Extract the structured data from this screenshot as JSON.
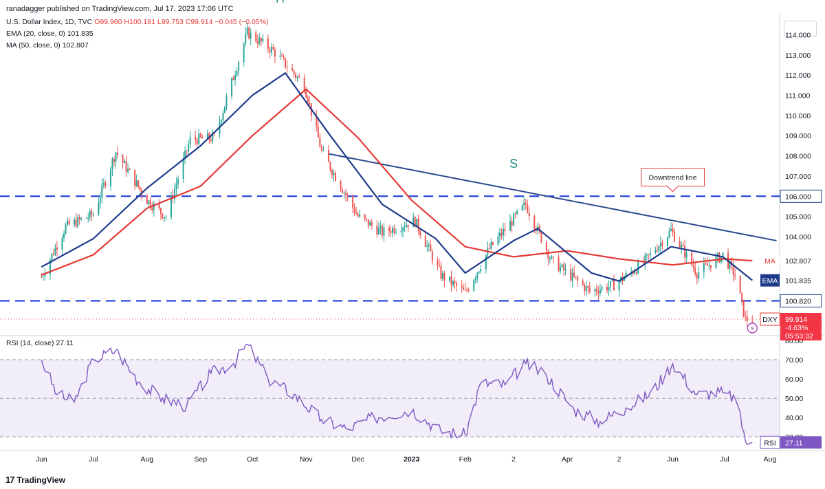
{
  "publisher": "ranadagger published on TradingView.com, Jul 17, 2023 17:06 UTC",
  "legend": {
    "symbol": "U.S. Dollar Index, 1D, TVC",
    "ohlc": "O99.960 H100.181 L99.753 C99.914 −0.045 (−0.05%)",
    "ema": "EMA (20, close, 0)",
    "ema_value": "101.835",
    "ma": "MA (50, close, 0)",
    "ma_value": "102.807"
  },
  "rsi_legend": "RSI (14, close)",
  "rsi_legend_value": "27.11",
  "watermark": "TradingView",
  "colors": {
    "up": "#26a69a",
    "down": "#ef5350",
    "ema": "#1e3a8a",
    "ma": "#e53935",
    "rsi": "#7e57c2",
    "level_line": "#1e3ad8",
    "trendline": "#2a4b8d",
    "pattern_label": "#1e8f84"
  },
  "chart_data": [
    {
      "type": "candlestick",
      "title": "U.S. Dollar Index, 1D, TVC",
      "x_ticks": [
        "Jun",
        "Jul",
        "Aug",
        "Sep",
        "Oct",
        "Nov",
        "Dec",
        "2023",
        "Feb",
        "2",
        "Apr",
        "2",
        "Jun",
        "Jul",
        "Aug"
      ],
      "y_ticks": [
        "114.000",
        "113.000",
        "112.000",
        "111.000",
        "110.000",
        "109.000",
        "108.000",
        "107.000",
        "106.000",
        "105.000",
        "104.000",
        "103.000",
        "102.000",
        "101.000"
      ],
      "ylim": [
        99.2,
        114.9
      ],
      "series": [
        {
          "name": "DXY",
          "x": [
            "2022-06-01",
            "2022-06-15",
            "2022-07-01",
            "2022-07-14",
            "2022-08-01",
            "2022-08-12",
            "2022-08-26",
            "2022-09-09",
            "2022-09-28",
            "2022-10-13",
            "2022-10-31",
            "2022-11-10",
            "2022-12-01",
            "2022-12-15",
            "2023-01-03",
            "2023-01-18",
            "2023-02-01",
            "2023-02-15",
            "2023-03-08",
            "2023-03-23",
            "2023-04-14",
            "2023-04-28",
            "2023-05-15",
            "2023-05-31",
            "2023-06-15",
            "2023-06-30",
            "2023-07-07",
            "2023-07-13",
            "2023-07-17"
          ],
          "close": [
            102.0,
            104.5,
            105.1,
            108.2,
            105.8,
            105.0,
            108.8,
            108.9,
            114.1,
            113.2,
            111.5,
            108.2,
            105.0,
            104.2,
            104.8,
            102.1,
            101.2,
            103.4,
            105.6,
            102.8,
            101.3,
            101.6,
            102.7,
            104.3,
            102.2,
            103.1,
            102.1,
            99.9,
            99.914
          ]
        },
        {
          "name": "EMA (20, close, 0)",
          "x": [
            "2022-06-01",
            "2022-07-01",
            "2022-08-01",
            "2022-09-01",
            "2022-10-01",
            "2022-10-20",
            "2022-11-15",
            "2022-12-15",
            "2023-01-15",
            "2023-02-01",
            "2023-03-01",
            "2023-03-15",
            "2023-04-15",
            "2023-05-01",
            "2023-05-31",
            "2023-06-30",
            "2023-07-17"
          ],
          "values": [
            102.5,
            103.9,
            106.4,
            108.5,
            111.0,
            112.1,
            109.0,
            105.6,
            103.9,
            102.2,
            103.8,
            104.4,
            102.2,
            101.8,
            103.5,
            103.0,
            101.835
          ]
        },
        {
          "name": "MA (50, close, 0)",
          "x": [
            "2022-06-01",
            "2022-07-01",
            "2022-08-01",
            "2022-09-01",
            "2022-10-01",
            "2022-11-01",
            "2022-12-01",
            "2023-01-01",
            "2023-02-01",
            "2023-03-01",
            "2023-04-01",
            "2023-05-01",
            "2023-06-01",
            "2023-07-01",
            "2023-07-17"
          ],
          "values": [
            102.1,
            103.1,
            105.4,
            106.5,
            109.0,
            111.3,
            108.9,
            105.8,
            103.5,
            103.0,
            103.3,
            102.9,
            102.6,
            102.9,
            102.807
          ]
        }
      ],
      "price_tags": [
        {
          "name": "MA",
          "value": "102.807"
        },
        {
          "name": "EMA",
          "value": "101.835"
        },
        {
          "name": "DXY",
          "value": "99.914",
          "change": "-4.63%",
          "time": "05:53:32"
        }
      ],
      "levels": [
        {
          "value": "106.000"
        },
        {
          "value": "100.820"
        }
      ],
      "trendline": {
        "from": {
          "x": "2022-11-14",
          "y": 108.1
        },
        "to": {
          "x": "2023-07-31",
          "y": 103.8
        }
      },
      "annotations": [
        {
          "text": "H",
          "x": "2022-10-17",
          "y": 115.6
        },
        {
          "text": "S",
          "x": "2023-03-01",
          "y": 107.4
        },
        {
          "text": "Downtrend line",
          "x": "2023-06-01",
          "y": 106.5
        }
      ]
    },
    {
      "type": "line",
      "title": "RSI (14, close)",
      "y_ticks": [
        "80.00",
        "70.00",
        "60.00",
        "50.00",
        "40.00",
        "30.00"
      ],
      "ylim": [
        24,
        80
      ],
      "band": [
        30,
        70
      ],
      "series": [
        {
          "name": "RSI (14, close)",
          "x": [
            "2022-06-01",
            "2022-06-10",
            "2022-06-20",
            "2022-07-01",
            "2022-07-14",
            "2022-07-28",
            "2022-08-10",
            "2022-08-24",
            "2022-09-07",
            "2022-09-20",
            "2022-09-28",
            "2022-10-10",
            "2022-10-25",
            "2022-11-10",
            "2022-11-25",
            "2022-12-10",
            "2023-01-01",
            "2023-01-18",
            "2023-02-01",
            "2023-02-10",
            "2023-02-24",
            "2023-03-08",
            "2023-03-20",
            "2023-04-05",
            "2023-04-20",
            "2023-05-05",
            "2023-05-20",
            "2023-06-01",
            "2023-06-15",
            "2023-06-30",
            "2023-07-07",
            "2023-07-14",
            "2023-07-17"
          ],
          "values": [
            70,
            52,
            48,
            70,
            75,
            58,
            50,
            46,
            63,
            68,
            78,
            60,
            52,
            39,
            34,
            40,
            44,
            33,
            31,
            58,
            57,
            68,
            62,
            44,
            38,
            45,
            53,
            68,
            52,
            53,
            50,
            26,
            27.11
          ]
        }
      ],
      "price_tags": [
        {
          "name": "RSI",
          "value": "27.11"
        }
      ]
    }
  ]
}
